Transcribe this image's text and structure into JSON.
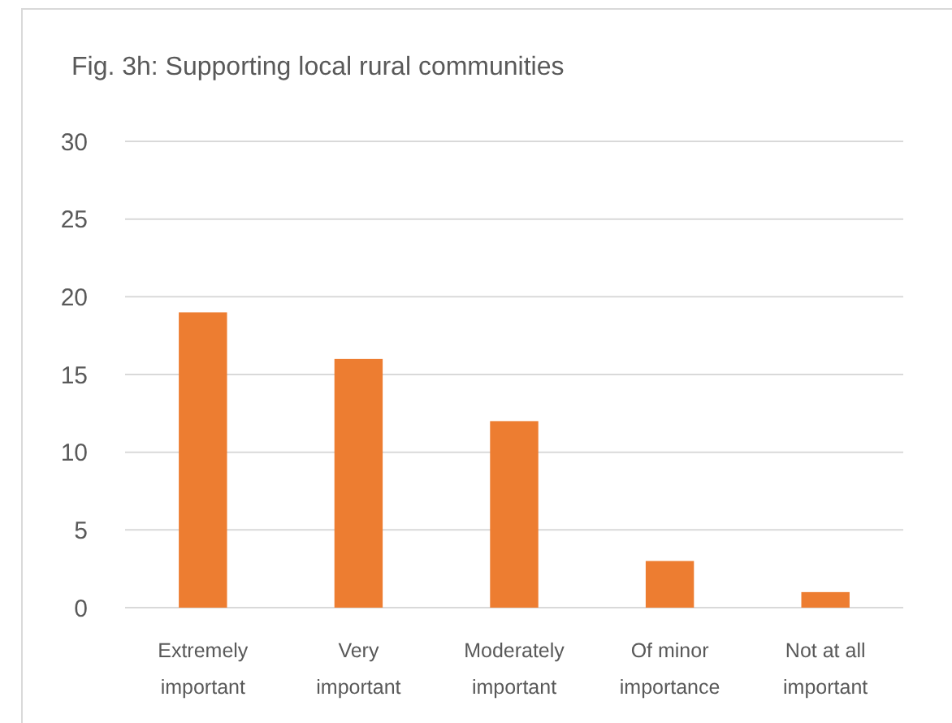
{
  "chart_data": {
    "type": "bar",
    "title": "Fig. 3h: Supporting local rural communities",
    "categories": [
      "Extremely important",
      "Very important",
      "Moderately important",
      "Of minor importance",
      "Not at all important"
    ],
    "values": [
      19,
      16,
      12,
      3,
      1
    ],
    "color": "#ed7d31",
    "ylim": [
      0,
      30
    ],
    "yticks": [
      0,
      5,
      10,
      15,
      20,
      25,
      30
    ],
    "grid": "y"
  }
}
